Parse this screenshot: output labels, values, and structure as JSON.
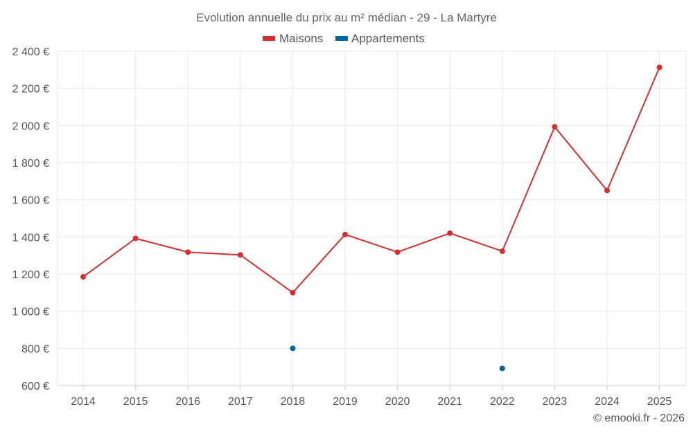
{
  "chart_data": {
    "type": "line",
    "title": "Evolution annuelle du prix au m² médian - 29 - La Martyre",
    "xlabel": "",
    "ylabel": "",
    "categories": [
      "2014",
      "2015",
      "2016",
      "2017",
      "2018",
      "2019",
      "2020",
      "2021",
      "2022",
      "2023",
      "2024",
      "2025"
    ],
    "ylim": [
      600,
      2400
    ],
    "yticks": [
      600,
      800,
      1000,
      1200,
      1400,
      1600,
      1800,
      2000,
      2200,
      2400
    ],
    "ytick_labels": [
      "600 €",
      "800 €",
      "1 000 €",
      "1 200 €",
      "1 400 €",
      "1 600 €",
      "1 800 €",
      "2 000 €",
      "2 200 €",
      "2 400 €"
    ],
    "grid": true,
    "legend_position": "top-center",
    "series": [
      {
        "name": "Maisons",
        "color": "#d32f2f",
        "values": [
          1185,
          1392,
          1318,
          1303,
          1100,
          1413,
          1318,
          1420,
          1323,
          1993,
          1650,
          2313
        ]
      },
      {
        "name": "Appartements",
        "color": "#01669b",
        "values": [
          null,
          null,
          null,
          null,
          800,
          null,
          null,
          null,
          692,
          null,
          null,
          null
        ]
      }
    ],
    "credit": "© emooki.fr - 2026"
  }
}
